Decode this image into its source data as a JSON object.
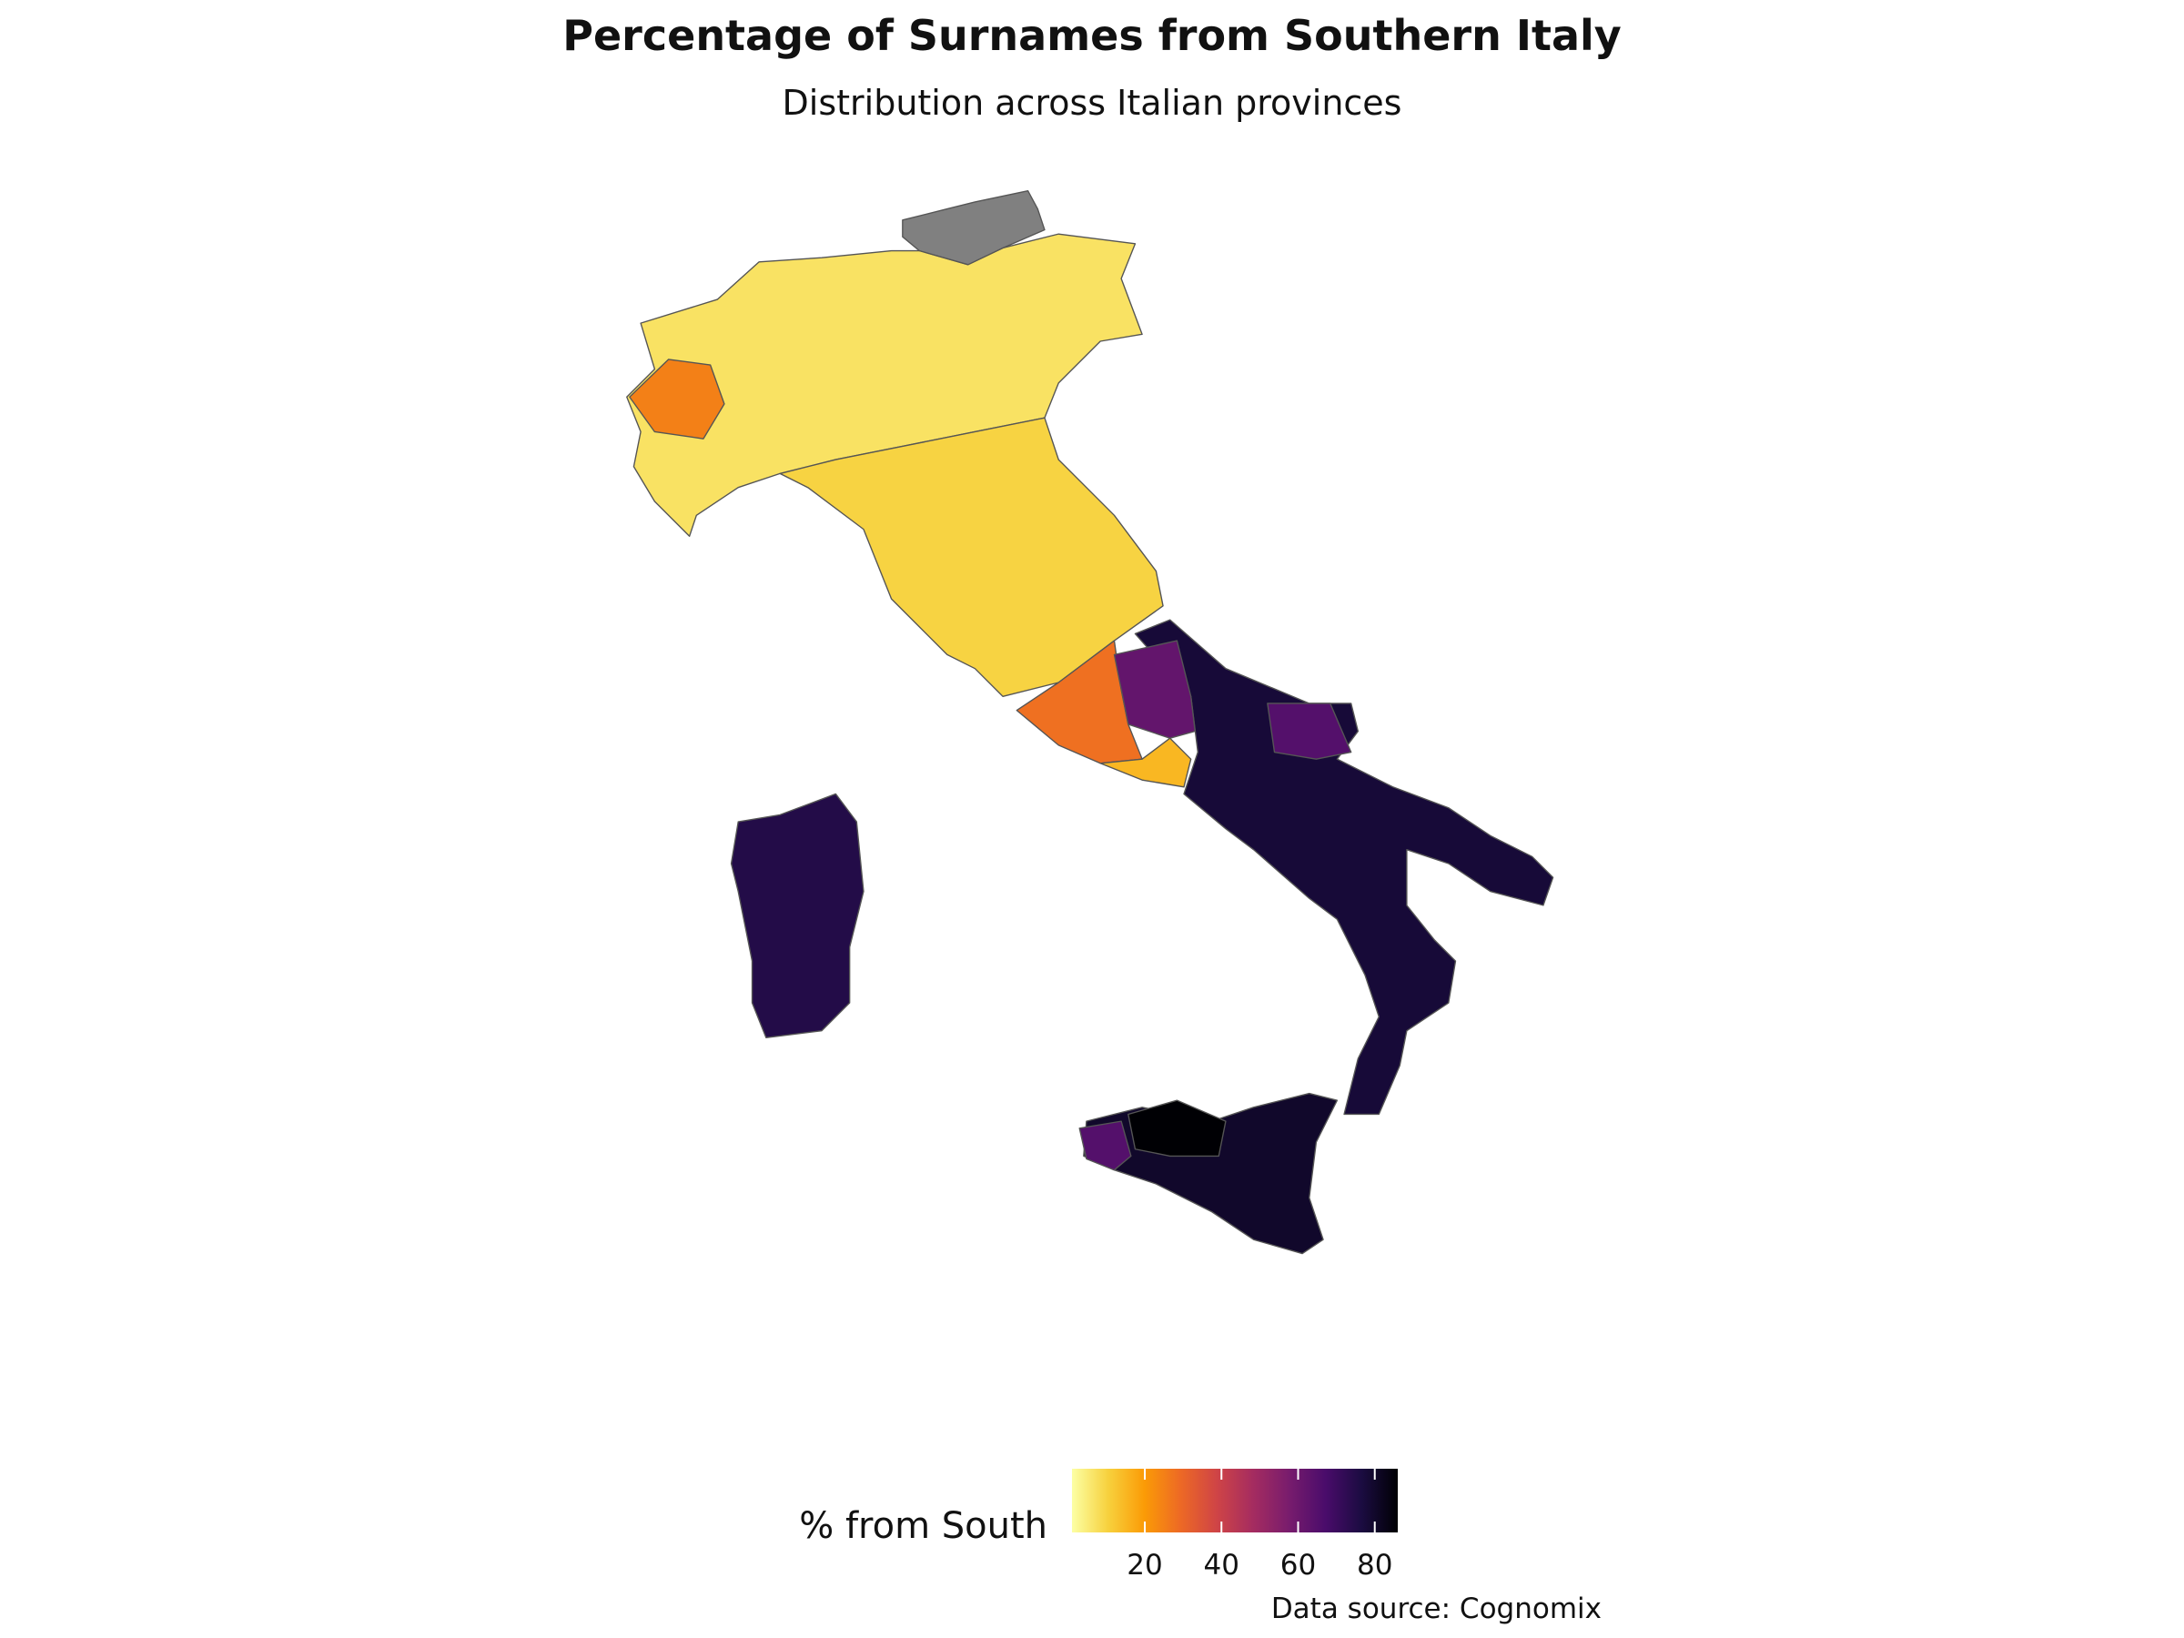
{
  "title": "Percentage of Surnames from Southern Italy",
  "subtitle": "Distribution across Italian provinces",
  "source": "Data source: Cognomix",
  "map": {
    "type": "choropleth",
    "values": [
      null,
      7,
      25,
      10,
      28,
      15,
      62,
      78,
      75,
      80,
      87,
      65,
      65
    ],
    "missing_color": "#808080",
    "legend": {
      "title": "% from South",
      "lim": [
        1,
        86
      ],
      "ticks": [
        20,
        40,
        60,
        80
      ],
      "colors": [
        "#fcffa4",
        "#f7d13d",
        "#fb9b06",
        "#ed6925",
        "#cf4446",
        "#a52c60",
        "#781c6d",
        "#4a0c6b",
        "#1b0c41",
        "#000004"
      ]
    }
  }
}
